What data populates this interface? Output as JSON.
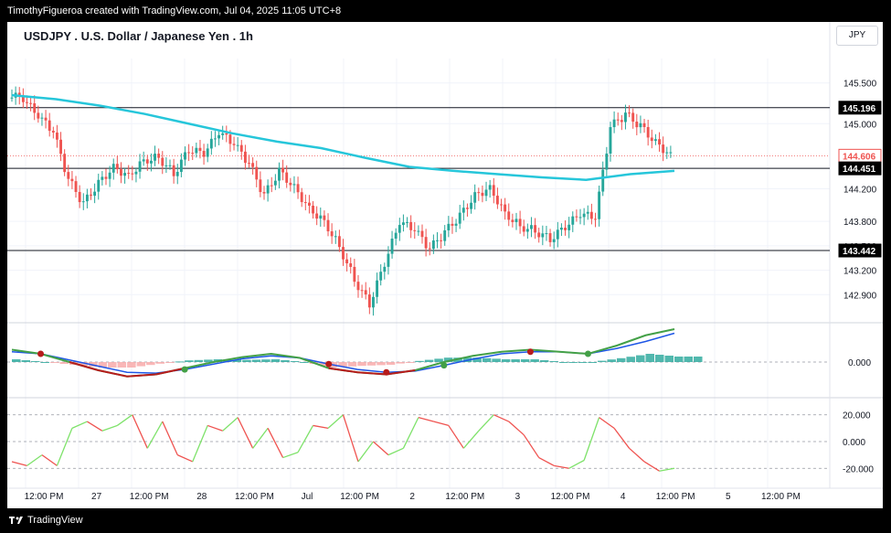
{
  "header": {
    "author_line": "TimothyFigueroa created with TradingView.com, Jul 04, 2025 11:05 UTC+8"
  },
  "chart_title": "USDJPY . U.S. Dollar / Japanese Yen . 1h",
  "currency_button": "JPY",
  "footer": {
    "brand": "TradingView"
  },
  "colors": {
    "up": "#26a69a",
    "down": "#ef5350",
    "ma": "#26c6da",
    "macd_fast": "#43a047",
    "macd_signal": "#1e56e6",
    "macd_red": "#b71c1c",
    "rsi_up": "#7ee26a",
    "rsi_down": "#ef5350"
  },
  "chart_data": [
    {
      "type": "candlestick",
      "title": "USDJPY . U.S. Dollar / Japanese Yen . 1h",
      "y_ticks": [
        "145.500",
        "145.000",
        "144.200",
        "143.800",
        "143.500",
        "143.200",
        "142.900"
      ],
      "ylim": [
        142.6,
        145.8
      ],
      "horizontal_levels": [
        145.196,
        144.451,
        143.442
      ],
      "price_labels": [
        {
          "value": 145.196,
          "text": "145.196",
          "style": "black"
        },
        {
          "value": 144.606,
          "text": "144.606",
          "style": "red"
        },
        {
          "value": 144.451,
          "text": "144.451",
          "style": "black"
        },
        {
          "value": 143.442,
          "text": "143.442",
          "style": "black"
        }
      ],
      "moving_average": [
        145.35,
        145.3,
        145.22,
        145.12,
        145.0,
        144.88,
        144.78,
        144.7,
        144.58,
        144.47,
        144.42,
        144.38,
        144.34,
        144.31,
        144.38,
        144.42
      ],
      "close_series": [
        145.32,
        145.1,
        144.9,
        144.3,
        144.0,
        144.25,
        144.45,
        144.35,
        144.55,
        144.6,
        144.4,
        144.7,
        144.65,
        144.9,
        144.75,
        144.5,
        144.1,
        144.4,
        144.2,
        143.95,
        143.8,
        143.5,
        143.1,
        142.8,
        143.3,
        143.8,
        143.7,
        143.45,
        143.65,
        143.85,
        144.1,
        144.2,
        143.9,
        143.75,
        143.7,
        143.6,
        143.75,
        143.9,
        143.85,
        144.95,
        145.1,
        144.95,
        144.75,
        144.6
      ]
    },
    {
      "type": "line",
      "title": "MACD",
      "y_ticks": [
        "0.000"
      ],
      "series_fast": [
        0.3,
        0.2,
        0.0,
        -0.2,
        -0.35,
        -0.3,
        -0.15,
        0.0,
        0.12,
        0.2,
        0.1,
        -0.15,
        -0.25,
        -0.3,
        -0.2,
        0.0,
        0.15,
        0.25,
        0.3,
        0.25,
        0.2,
        0.4,
        0.65,
        0.8
      ],
      "series_signal": [
        0.25,
        0.2,
        0.05,
        -0.1,
        -0.25,
        -0.27,
        -0.18,
        -0.05,
        0.08,
        0.15,
        0.1,
        -0.05,
        -0.18,
        -0.25,
        -0.22,
        -0.08,
        0.07,
        0.2,
        0.25,
        0.25,
        0.2,
        0.33,
        0.5,
        0.7
      ]
    },
    {
      "type": "line",
      "title": "RSI",
      "y_ticks": [
        "20.000",
        "0.000",
        "-20.000"
      ],
      "ylim": [
        -28,
        28
      ],
      "values": [
        -15,
        -18,
        -10,
        -18,
        10,
        15,
        8,
        12,
        20,
        -5,
        15,
        -10,
        -15,
        12,
        8,
        18,
        -5,
        10,
        -12,
        -8,
        12,
        10,
        20,
        -15,
        0,
        -10,
        -5,
        18,
        15,
        12,
        -5,
        8,
        20,
        15,
        5,
        -12,
        -18,
        -20,
        -14,
        18,
        10,
        -5,
        -15,
        -22,
        -20
      ]
    }
  ],
  "x_axis_labels": [
    "12:00 PM",
    "27",
    "12:00 PM",
    "28",
    "12:00 PM",
    "Jul",
    "12:00 PM",
    "2",
    "12:00 PM",
    "3",
    "12:00 PM",
    "4",
    "12:00 PM",
    "5",
    "12:00 PM"
  ]
}
